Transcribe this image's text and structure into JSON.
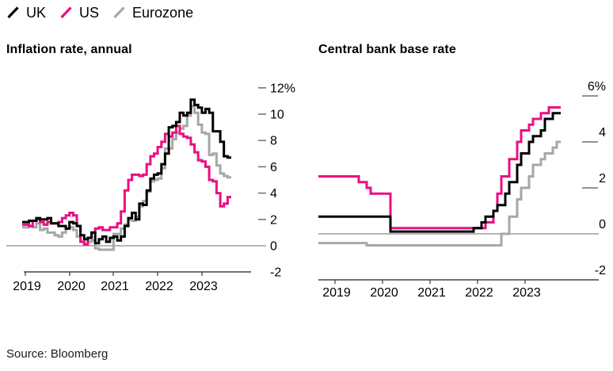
{
  "legend": {
    "position": "top-left",
    "items": [
      {
        "label": "UK",
        "color": "#000000"
      },
      {
        "label": "US",
        "color": "#ec0e80"
      },
      {
        "label": "Eurozone",
        "color": "#a7a7a7"
      }
    ]
  },
  "source_text": "Source: Bloomberg",
  "colors": {
    "uk": "#000000",
    "us": "#ec0e80",
    "eurozone": "#a7a7a7",
    "zero_line": "#8a8a8a",
    "axis_line": "#454545",
    "y_tick_dash": "#6e6e6e",
    "label_text": "#000000",
    "background": "#ffffff"
  },
  "chart_data": [
    {
      "type": "line",
      "subtype": "step",
      "title": "Inflation rate, annual",
      "grid": "zero-line-only",
      "legend_position": "shared-top-left",
      "x": {
        "start": "2019-01",
        "end": "2023-08",
        "frequency": "monthly",
        "tick_labels": [
          "2019",
          "2020",
          "2021",
          "2022",
          "2023"
        ]
      },
      "y": {
        "lim": [
          -2,
          12
        ],
        "unit": "%",
        "tick_values": [
          12,
          10,
          8,
          6,
          4,
          2,
          0,
          -2
        ],
        "tick_labels": [
          "12%",
          "10",
          "8",
          "6",
          "4",
          "2",
          "0",
          "-2"
        ]
      },
      "series": [
        {
          "name": "UK",
          "color": "#000000",
          "values": [
            1.8,
            1.9,
            1.9,
            2.1,
            2.0,
            2.0,
            2.1,
            1.7,
            1.7,
            1.5,
            1.5,
            1.3,
            1.8,
            1.7,
            1.5,
            0.8,
            0.5,
            0.6,
            1.0,
            0.2,
            0.5,
            0.7,
            0.3,
            0.6,
            0.7,
            0.4,
            0.7,
            1.5,
            2.1,
            2.5,
            2.0,
            3.2,
            3.1,
            4.2,
            5.1,
            5.4,
            5.5,
            6.2,
            7.0,
            9.0,
            9.1,
            9.4,
            10.1,
            9.9,
            10.1,
            11.1,
            10.7,
            10.5,
            10.1,
            10.4,
            10.1,
            8.7,
            8.7,
            7.9,
            6.8,
            6.7
          ]
        },
        {
          "name": "US",
          "color": "#ec0e80",
          "values": [
            1.6,
            1.5,
            1.9,
            2.0,
            1.8,
            1.6,
            1.8,
            1.7,
            1.7,
            1.8,
            2.1,
            2.3,
            2.5,
            2.3,
            1.5,
            0.3,
            0.1,
            0.6,
            1.0,
            1.3,
            1.4,
            1.2,
            1.2,
            1.4,
            1.4,
            1.7,
            2.6,
            4.2,
            5.0,
            5.4,
            5.4,
            5.3,
            5.4,
            6.2,
            6.8,
            7.0,
            7.5,
            7.9,
            8.5,
            8.3,
            8.6,
            9.1,
            8.5,
            8.3,
            8.2,
            7.7,
            7.1,
            6.5,
            6.4,
            6.0,
            5.0,
            4.9,
            4.0,
            3.0,
            3.2,
            3.7
          ]
        },
        {
          "name": "Eurozone",
          "color": "#a7a7a7",
          "values": [
            1.4,
            1.5,
            1.4,
            1.7,
            1.2,
            1.3,
            1.0,
            1.0,
            0.8,
            0.7,
            1.0,
            1.3,
            1.4,
            1.2,
            0.7,
            0.3,
            0.1,
            0.3,
            0.4,
            -0.2,
            -0.3,
            -0.3,
            -0.3,
            -0.3,
            0.9,
            0.9,
            1.3,
            1.6,
            2.0,
            1.9,
            2.2,
            3.0,
            3.4,
            4.1,
            4.9,
            5.0,
            5.1,
            5.9,
            7.4,
            7.4,
            8.1,
            8.6,
            8.9,
            9.1,
            9.9,
            10.6,
            10.1,
            9.2,
            8.6,
            8.5,
            6.9,
            7.0,
            6.1,
            5.5,
            5.3,
            5.2
          ]
        }
      ]
    },
    {
      "type": "line",
      "subtype": "step",
      "title": "Central bank base rate",
      "grid": "zero-line-only",
      "legend_position": "shared-top-left",
      "x": {
        "start": "2019-01",
        "end": "2023-09",
        "frequency": "monthly",
        "tick_labels": [
          "2019",
          "2020",
          "2021",
          "2022",
          "2023"
        ]
      },
      "y": {
        "lim": [
          -2,
          6
        ],
        "unit": "%",
        "tick_values": [
          6,
          4,
          2,
          0,
          -2
        ],
        "tick_labels": [
          "6%",
          "4",
          "2",
          "0",
          "-2"
        ]
      },
      "series": [
        {
          "name": "UK",
          "color": "#000000",
          "values": [
            0.75,
            0.75,
            0.75,
            0.75,
            0.75,
            0.75,
            0.75,
            0.75,
            0.75,
            0.75,
            0.75,
            0.75,
            0.75,
            0.75,
            0.1,
            0.1,
            0.1,
            0.1,
            0.1,
            0.1,
            0.1,
            0.1,
            0.1,
            0.1,
            0.1,
            0.1,
            0.1,
            0.1,
            0.1,
            0.1,
            0.1,
            0.1,
            0.1,
            0.1,
            0.1,
            0.25,
            0.25,
            0.5,
            0.75,
            0.75,
            1.0,
            1.25,
            1.25,
            1.75,
            2.25,
            2.25,
            3.0,
            3.5,
            3.5,
            4.0,
            4.25,
            4.25,
            4.5,
            5.0,
            5.0,
            5.25,
            5.25
          ]
        },
        {
          "name": "US",
          "color": "#ec0e80",
          "values": [
            2.5,
            2.5,
            2.5,
            2.5,
            2.5,
            2.5,
            2.25,
            2.25,
            2.0,
            1.75,
            1.75,
            1.75,
            1.75,
            1.75,
            0.25,
            0.25,
            0.25,
            0.25,
            0.25,
            0.25,
            0.25,
            0.25,
            0.25,
            0.25,
            0.25,
            0.25,
            0.25,
            0.25,
            0.25,
            0.25,
            0.25,
            0.25,
            0.25,
            0.25,
            0.25,
            0.25,
            0.25,
            0.25,
            0.5,
            0.5,
            1.0,
            1.75,
            2.5,
            2.5,
            3.25,
            3.25,
            4.0,
            4.5,
            4.5,
            4.75,
            5.0,
            5.0,
            5.25,
            5.25,
            5.5,
            5.5,
            5.5
          ]
        },
        {
          "name": "Eurozone",
          "color": "#a7a7a7",
          "values": [
            -0.4,
            -0.4,
            -0.4,
            -0.4,
            -0.4,
            -0.4,
            -0.4,
            -0.4,
            -0.5,
            -0.5,
            -0.5,
            -0.5,
            -0.5,
            -0.5,
            -0.5,
            -0.5,
            -0.5,
            -0.5,
            -0.5,
            -0.5,
            -0.5,
            -0.5,
            -0.5,
            -0.5,
            -0.5,
            -0.5,
            -0.5,
            -0.5,
            -0.5,
            -0.5,
            -0.5,
            -0.5,
            -0.5,
            -0.5,
            -0.5,
            -0.5,
            -0.5,
            -0.5,
            -0.5,
            -0.5,
            -0.5,
            -0.5,
            0.0,
            0.0,
            0.75,
            0.75,
            1.5,
            2.0,
            2.0,
            2.5,
            3.0,
            3.0,
            3.25,
            3.5,
            3.5,
            3.75,
            4.0
          ]
        }
      ]
    }
  ]
}
